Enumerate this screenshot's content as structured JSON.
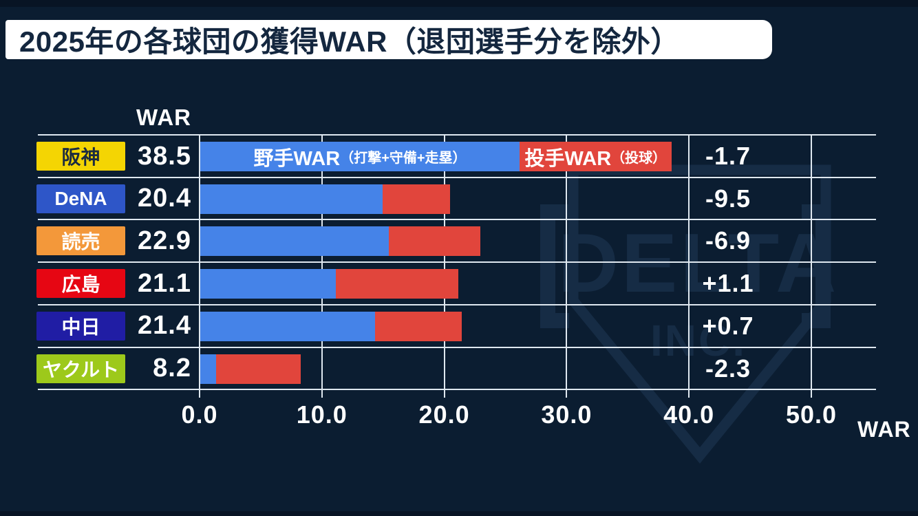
{
  "title": "2025年の各球団の獲得WAR（退団選手分を除外）",
  "war_header": "WAR",
  "watermark": {
    "brand": "DELTA",
    "sub": "INC."
  },
  "legend": {
    "batter_label": "野手WAR",
    "batter_note": "（打撃+守備+走塁）",
    "pitcher_label": "投手WAR",
    "pitcher_note": "（投球）"
  },
  "x_axis": {
    "tick_labels": [
      "0.0",
      "10.0",
      "20.0",
      "30.0",
      "40.0",
      "50.0"
    ],
    "axis_label": "WAR",
    "min": 0,
    "max": 50,
    "grid_step": 10
  },
  "colors": {
    "background": "#0b1d31",
    "grid_line": "#dfe8f0",
    "batter_bar": "#4583e8",
    "pitcher_bar": "#e1453c",
    "title_bg": "#ffffff",
    "title_fg": "#14273f"
  },
  "teams": [
    {
      "name": "阪神",
      "badge_bg": "#f4d503",
      "badge_fg": "#1c2b40",
      "total_war": "38.5",
      "batter_war": 26.1,
      "pitcher_war": 12.4,
      "delta": "-1.7"
    },
    {
      "name": "DeNA",
      "badge_bg": "#2e56c8",
      "badge_fg": "#ffffff",
      "total_war": "20.4",
      "batter_war": 14.9,
      "pitcher_war": 5.5,
      "delta": "-9.5"
    },
    {
      "name": "読売",
      "badge_bg": "#f3983a",
      "badge_fg": "#ffffff",
      "total_war": "22.9",
      "batter_war": 15.4,
      "pitcher_war": 7.5,
      "delta": "-6.9"
    },
    {
      "name": "広島",
      "badge_bg": "#e60613",
      "badge_fg": "#ffffff",
      "total_war": "21.1",
      "batter_war": 11.1,
      "pitcher_war": 10.0,
      "delta": "+1.1"
    },
    {
      "name": "中日",
      "badge_bg": "#201da4",
      "badge_fg": "#ffffff",
      "total_war": "21.4",
      "batter_war": 14.3,
      "pitcher_war": 7.1,
      "delta": "+0.7"
    },
    {
      "name": "ヤクルト",
      "badge_bg": "#9dc91b",
      "badge_fg": "#ffffff",
      "total_war": "8.2",
      "batter_war": 1.3,
      "pitcher_war": 6.9,
      "delta": "-2.3"
    }
  ],
  "chart_data": {
    "type": "bar",
    "orientation": "horizontal",
    "stacked": true,
    "title": "2025年の各球団の獲得WAR（退団選手分を除外）",
    "categories": [
      "阪神",
      "DeNA",
      "読売",
      "広島",
      "中日",
      "ヤクルト"
    ],
    "series": [
      {
        "name": "野手WAR（打撃+守備+走塁）",
        "color": "#4583e8",
        "values": [
          26.1,
          14.9,
          15.4,
          11.1,
          14.3,
          1.3
        ]
      },
      {
        "name": "投手WAR（投球）",
        "color": "#e1453c",
        "values": [
          12.4,
          5.5,
          7.5,
          10.0,
          7.1,
          6.9
        ]
      }
    ],
    "totals": [
      38.5,
      20.4,
      22.9,
      21.1,
      21.4,
      8.2
    ],
    "right_column_values": [
      "-1.7",
      "-9.5",
      "-6.9",
      "+1.1",
      "+0.7",
      "-2.3"
    ],
    "xlabel": "WAR",
    "xlim": [
      0,
      50
    ],
    "x_ticks": [
      0,
      10,
      20,
      30,
      40,
      50
    ],
    "grid": true,
    "legend_position": "inside-first-bar"
  }
}
